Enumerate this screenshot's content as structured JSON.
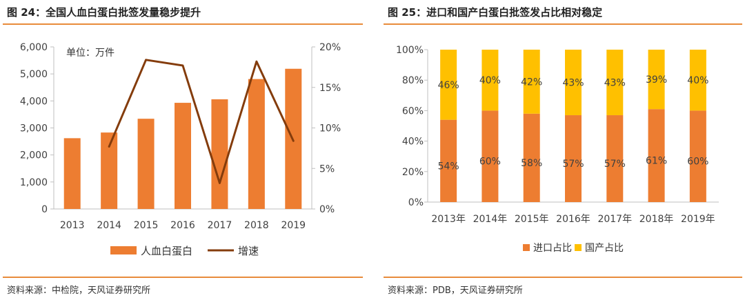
{
  "left_panel": {
    "title": "图 24：全国人血白蛋白批签发量稳步提升",
    "source": "资料来源：中检院，天风证券研究所"
  },
  "right_panel": {
    "title": "图 25：进口和国产白蛋白批签发占比相对稳定",
    "source": "资料来源：PDB，天风证券研究所"
  },
  "colors": {
    "bar_orange": "#ED7D31",
    "line_brown": "#843C0C",
    "import_orange": "#ED7D31",
    "domestic_yellow": "#FFC000",
    "rule_orange": "#E88B3A",
    "axis_grey": "#BFBFBF"
  },
  "chart_data": [
    {
      "type": "bar",
      "annotation": "单位：万件",
      "categories": [
        "2013",
        "2014",
        "2015",
        "2016",
        "2017",
        "2018",
        "2019"
      ],
      "series": [
        {
          "name": "人血白蛋白",
          "axis": "left",
          "kind": "bar",
          "values": [
            2620,
            2830,
            3340,
            3930,
            4060,
            4810,
            5190
          ]
        },
        {
          "name": "增速",
          "axis": "right",
          "kind": "line",
          "values": [
            null,
            7.7,
            18.4,
            17.7,
            3.2,
            18.2,
            8.4
          ]
        }
      ],
      "ylim": [
        0,
        6000
      ],
      "y_ticks": [
        "0",
        "1,000",
        "2,000",
        "3,000",
        "4,000",
        "5,000",
        "6,000"
      ],
      "y2lim": [
        0,
        20
      ],
      "y2_ticks": [
        "0%",
        "5%",
        "10%",
        "15%",
        "20%"
      ],
      "legend": [
        "人血白蛋白",
        "增速"
      ],
      "legend_position": "bottom",
      "grid": false
    },
    {
      "type": "bar",
      "stacked": true,
      "categories": [
        "2013年",
        "2014年",
        "2015年",
        "2016年",
        "2017年",
        "2018年",
        "2019年"
      ],
      "series": [
        {
          "name": "进口占比",
          "values": [
            54,
            60,
            58,
            57,
            57,
            61,
            60
          ],
          "labels": [
            "54%",
            "60%",
            "58%",
            "57%",
            "57%",
            "61%",
            "60%"
          ]
        },
        {
          "name": "国产占比",
          "values": [
            46,
            40,
            42,
            43,
            43,
            39,
            40
          ],
          "labels": [
            "46%",
            "40%",
            "42%",
            "43%",
            "43%",
            "39%",
            "40%"
          ]
        }
      ],
      "ylim": [
        0,
        100
      ],
      "y_ticks": [
        "0%",
        "20%",
        "40%",
        "60%",
        "80%",
        "100%"
      ],
      "legend": [
        "进口占比",
        "国产占比"
      ],
      "legend_position": "bottom",
      "grid": false
    }
  ]
}
